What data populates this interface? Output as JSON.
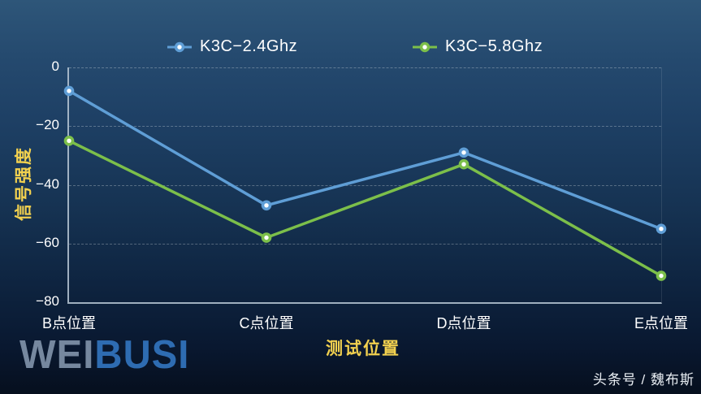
{
  "theme": {
    "background_top": "#2e5679",
    "background_bottom": "#060f1e",
    "axis_title": "#f2d14f",
    "tick_label": "#ffffff",
    "legend_text": "#ffffff",
    "axis_line": "#b9c8d6",
    "logo_wei": "#76889f",
    "logo_busi": "#2e6cb2",
    "attribution": "#e9eef3"
  },
  "chart_data": {
    "type": "line",
    "categories": [
      "B点位置",
      "C点位置",
      "D点位置",
      "E点位置"
    ],
    "series": [
      {
        "name": "K3C−2.4Ghz",
        "color": "#5f9ed6",
        "values": [
          -8,
          -47,
          -29,
          -55
        ]
      },
      {
        "name": "K3C−5.8Ghz",
        "color": "#7cbf4a",
        "values": [
          -25,
          -58,
          -33,
          -71
        ]
      }
    ],
    "title": "",
    "xlabel": "测试位置",
    "ylabel": "信号强度",
    "ylim": [
      -80,
      0
    ],
    "yticks": [
      0,
      -20,
      -40,
      -60,
      -80
    ],
    "ytick_labels": [
      "0",
      "−20",
      "−40",
      "−60",
      "−80"
    ],
    "grid": true,
    "gridline_style": "dashed",
    "legend_position": "top",
    "marker": "circle-with-white-center"
  },
  "footer": {
    "logo_part1": "WEI",
    "logo_part2": "BUSI",
    "attribution": "头条号 / 魏布斯"
  }
}
